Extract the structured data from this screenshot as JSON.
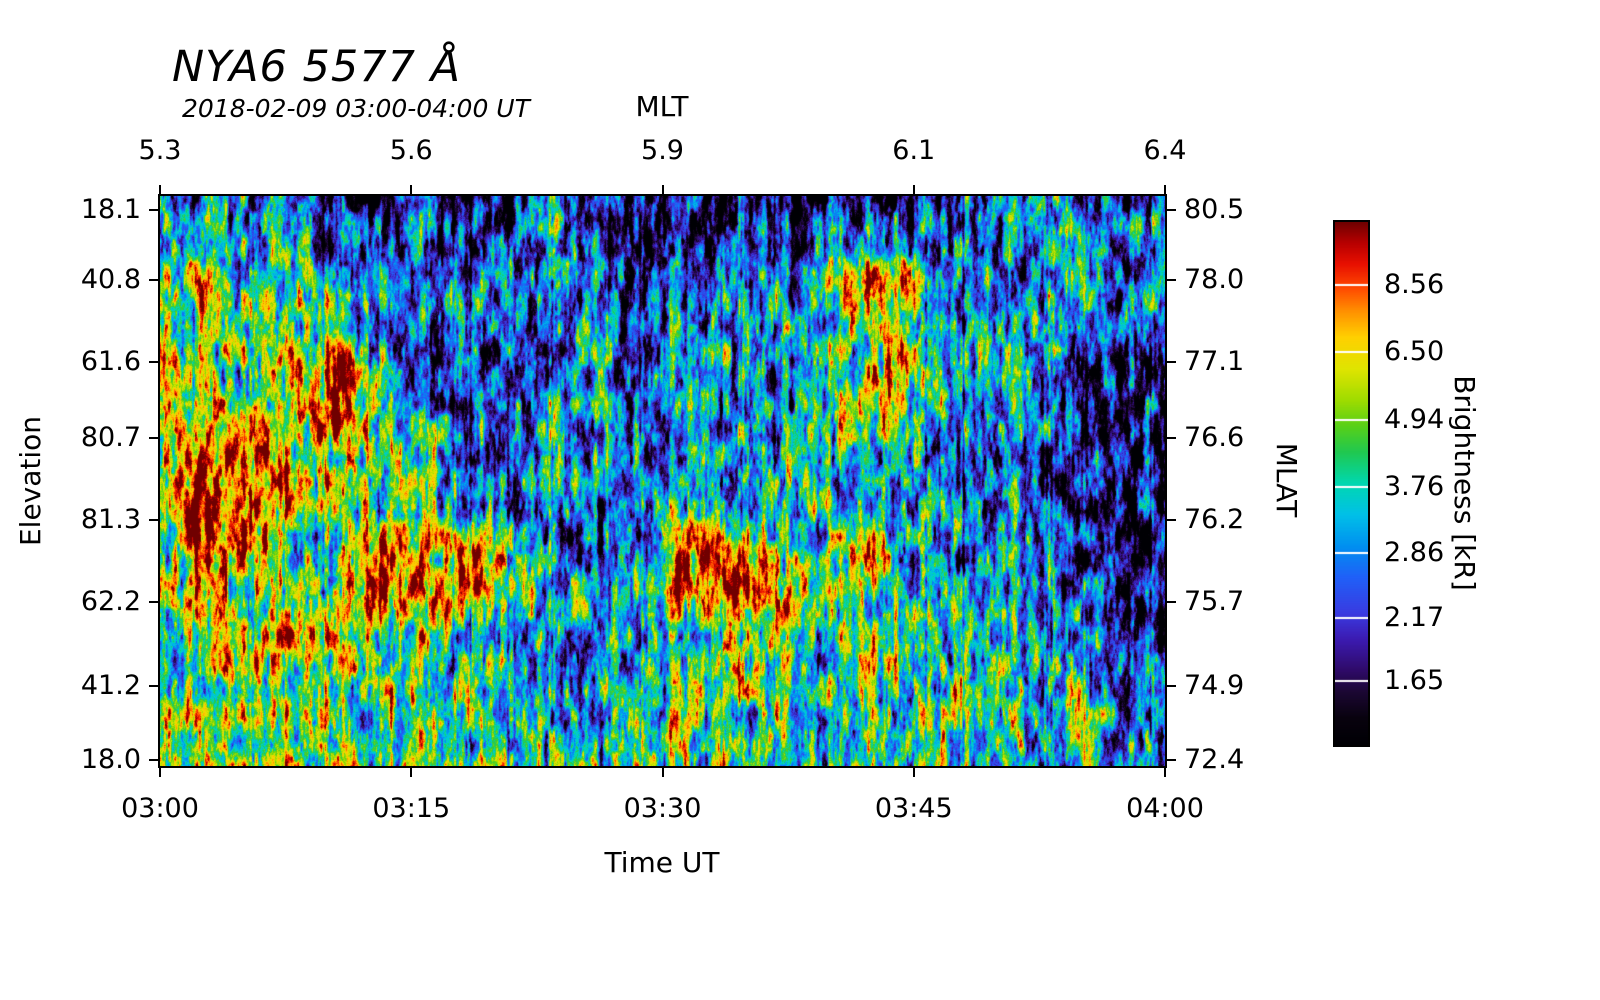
{
  "chart_data": {
    "type": "heatmap",
    "title": "NYA6 5577 Å",
    "subtitle": "2018-02-09 03:00-04:00 UT",
    "top_axis": {
      "label": "MLT",
      "ticks": [
        "5.3",
        "5.6",
        "5.9",
        "6.1",
        "6.4"
      ],
      "positions": [
        0,
        0.25,
        0.5,
        0.75,
        1
      ]
    },
    "bottom_axis": {
      "label": "Time UT",
      "ticks": [
        "03:00",
        "03:15",
        "03:30",
        "03:45",
        "04:00"
      ],
      "positions": [
        0,
        0.25,
        0.5,
        0.75,
        1
      ]
    },
    "left_axis": {
      "label": "Elevation",
      "ticks": [
        "18.1",
        "40.8",
        "61.6",
        "80.7",
        "81.3",
        "62.2",
        "41.2",
        "18.0"
      ],
      "positions": [
        0.025,
        0.147,
        0.291,
        0.425,
        0.568,
        0.712,
        0.86,
        0.989
      ]
    },
    "right_axis": {
      "label": "MLAT",
      "ticks": [
        "80.5",
        "78.0",
        "77.1",
        "76.6",
        "76.2",
        "75.7",
        "74.9",
        "72.4"
      ],
      "positions": [
        0.025,
        0.147,
        0.291,
        0.425,
        0.568,
        0.712,
        0.86,
        0.989
      ]
    },
    "colorbar": {
      "label": "Brightness [kR]",
      "ticks": [
        "8.56",
        "6.50",
        "4.94",
        "3.76",
        "2.86",
        "2.17",
        "1.65"
      ],
      "positions": [
        0.12,
        0.249,
        0.379,
        0.507,
        0.633,
        0.757,
        0.878
      ],
      "scale": "log",
      "vmin": 1.27,
      "vmax": 11.1,
      "units": "kR"
    },
    "colormap": {
      "stops": [
        [
          0.0,
          "#000004"
        ],
        [
          0.05,
          "#08020e"
        ],
        [
          0.1,
          "#1b0733"
        ],
        [
          0.14,
          "#2e0a66"
        ],
        [
          0.2,
          "#3b1ab0"
        ],
        [
          0.25,
          "#3a3ae0"
        ],
        [
          0.32,
          "#2060f8"
        ],
        [
          0.38,
          "#0090f0"
        ],
        [
          0.44,
          "#00c0e8"
        ],
        [
          0.5,
          "#00d8b0"
        ],
        [
          0.56,
          "#20c850"
        ],
        [
          0.61,
          "#58d018"
        ],
        [
          0.66,
          "#a0dc00"
        ],
        [
          0.72,
          "#e0e400"
        ],
        [
          0.78,
          "#ffd000"
        ],
        [
          0.83,
          "#ff9000"
        ],
        [
          0.875,
          "#ff4800"
        ],
        [
          0.92,
          "#e81000"
        ],
        [
          0.96,
          "#b80000"
        ],
        [
          1.0,
          "#700000"
        ]
      ]
    },
    "grid_cols": 24,
    "grid_rows": 14,
    "values_kR": [
      [
        3.2,
        3.0,
        2.8,
        3.0,
        1.7,
        1.5,
        2.0,
        1.6,
        1.5,
        2.8,
        1.5,
        1.4,
        1.6,
        1.5,
        1.4,
        1.6,
        1.8,
        1.6,
        2.2,
        3.0,
        3.2,
        2.2,
        1.8,
        2.4
      ],
      [
        3.4,
        4.5,
        2.6,
        3.6,
        2.2,
        2.4,
        2.6,
        2.2,
        1.7,
        4.0,
        2.2,
        1.6,
        2.0,
        2.4,
        2.6,
        2.4,
        3.0,
        2.6,
        2.4,
        2.6,
        3.4,
        2.8,
        2.6,
        3.2
      ],
      [
        4.2,
        7.5,
        3.0,
        4.4,
        2.6,
        2.6,
        2.4,
        2.6,
        2.0,
        3.0,
        2.6,
        1.8,
        2.4,
        3.0,
        3.4,
        3.2,
        8.5,
        8.0,
        3.4,
        2.6,
        2.6,
        3.0,
        2.4,
        3.4
      ],
      [
        4.6,
        4.0,
        5.2,
        5.0,
        3.4,
        2.6,
        2.2,
        2.4,
        2.2,
        2.4,
        2.8,
        2.2,
        2.6,
        3.4,
        3.0,
        3.6,
        5.5,
        4.2,
        2.6,
        3.4,
        3.8,
        2.6,
        2.2,
        2.6
      ],
      [
        8.5,
        4.4,
        4.0,
        5.0,
        7.5,
        3.4,
        2.6,
        2.2,
        1.9,
        2.2,
        3.2,
        2.4,
        2.8,
        3.2,
        2.8,
        3.0,
        4.4,
        8.0,
        3.2,
        3.0,
        3.4,
        2.4,
        1.9,
        1.7
      ],
      [
        7.0,
        5.0,
        6.5,
        5.5,
        8.5,
        4.0,
        3.0,
        2.4,
        2.0,
        3.2,
        2.4,
        2.2,
        3.2,
        2.6,
        3.0,
        3.4,
        5.0,
        4.6,
        2.8,
        2.6,
        2.8,
        2.2,
        1.8,
        1.6
      ],
      [
        5.5,
        9.5,
        9.0,
        6.5,
        5.0,
        4.4,
        3.2,
        2.6,
        2.2,
        3.4,
        2.2,
        2.4,
        2.8,
        3.2,
        2.8,
        4.4,
        3.8,
        3.4,
        2.6,
        3.0,
        2.4,
        2.0,
        1.9,
        1.7
      ],
      [
        5.0,
        10.0,
        9.5,
        5.5,
        4.6,
        3.8,
        3.4,
        3.0,
        2.4,
        2.6,
        2.0,
        2.6,
        3.4,
        2.8,
        3.2,
        3.8,
        3.2,
        2.8,
        3.0,
        2.6,
        2.2,
        1.9,
        1.7,
        1.6
      ],
      [
        4.6,
        9.5,
        8.5,
        4.6,
        4.2,
        8.0,
        6.0,
        8.5,
        4.2,
        2.6,
        2.4,
        2.6,
        7.5,
        8.5,
        4.4,
        3.6,
        8.0,
        3.4,
        2.6,
        2.4,
        2.2,
        1.9,
        1.6,
        1.5
      ],
      [
        4.4,
        6.5,
        4.6,
        4.2,
        5.0,
        8.5,
        8.0,
        6.5,
        4.6,
        3.2,
        2.8,
        3.4,
        8.5,
        9.0,
        6.5,
        4.2,
        4.6,
        3.4,
        3.0,
        2.8,
        2.4,
        2.2,
        1.8,
        1.5
      ],
      [
        4.2,
        4.6,
        5.5,
        8.0,
        4.6,
        5.0,
        4.4,
        3.8,
        3.4,
        3.0,
        2.6,
        3.0,
        4.4,
        5.0,
        4.6,
        3.8,
        6.5,
        4.2,
        3.4,
        3.8,
        3.0,
        2.6,
        2.0,
        1.6
      ],
      [
        4.4,
        4.6,
        6.0,
        5.0,
        4.4,
        4.6,
        3.8,
        3.4,
        3.0,
        3.2,
        3.0,
        3.4,
        3.8,
        4.2,
        4.4,
        3.6,
        4.6,
        3.8,
        3.6,
        4.4,
        3.4,
        3.6,
        2.6,
        1.8
      ],
      [
        4.6,
        5.0,
        5.5,
        5.2,
        4.8,
        4.4,
        4.0,
        3.6,
        3.4,
        3.6,
        3.4,
        3.8,
        4.0,
        4.2,
        4.0,
        3.8,
        4.2,
        4.0,
        3.8,
        4.0,
        3.6,
        3.8,
        3.0,
        2.2
      ],
      [
        5.2,
        5.5,
        5.8,
        5.5,
        5.0,
        4.6,
        4.4,
        4.0,
        3.8,
        4.0,
        3.8,
        4.0,
        4.2,
        4.4,
        4.2,
        4.0,
        4.4,
        4.2,
        3.8,
        3.6,
        3.4,
        3.2,
        2.8,
        2.4
      ]
    ]
  }
}
